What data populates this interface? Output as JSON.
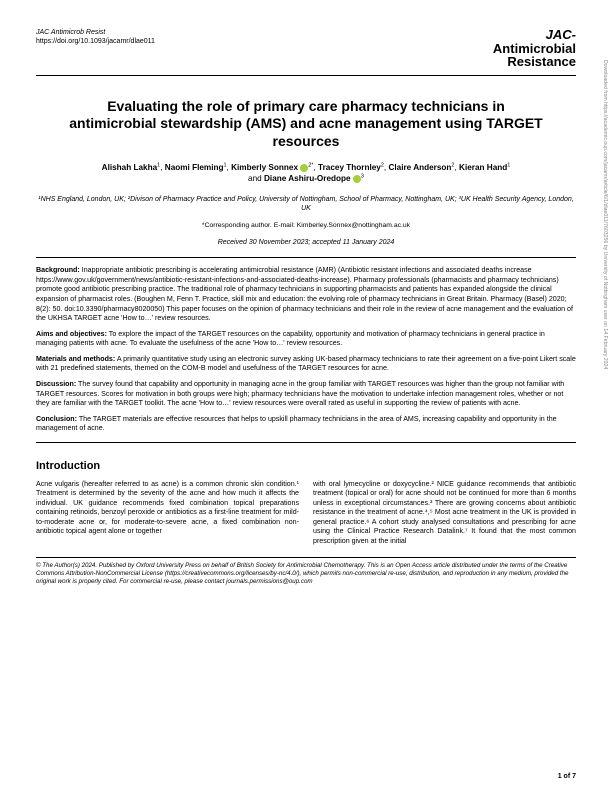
{
  "header": {
    "journal_name": "JAC Antimicrob Resist",
    "doi": "https://doi.org/10.1093/jacamr/dlae011",
    "logo_line1": "JAC-",
    "logo_line2": "Antimicrobial",
    "logo_line3": "Resistance"
  },
  "title": "Evaluating the role of primary care pharmacy technicians in antimicrobial stewardship (AMS) and acne management using TARGET resources",
  "authors": {
    "a1": "Alishah Lakha",
    "a1_sup": "1",
    "a2": "Naomi Fleming",
    "a2_sup": "1",
    "a3": "Kimberly Sonnex",
    "a3_sup": "2",
    "a3_mark": "*",
    "a4": "Tracey Thornley",
    "a4_sup": "2",
    "a5": "Claire Anderson",
    "a5_sup": "2",
    "a6": "Kieran Hand",
    "a6_sup": "1",
    "and": "and",
    "a7": "Diane Ashiru-Oredope",
    "a7_sup": "3"
  },
  "affiliations": "¹NHS England, London, UK; ²Divison of Pharmacy Practice and Policy, University of Nottingham, School of Pharmacy, Nottingham, UK; ³UK Health Security Agency, London, UK",
  "corresponding": "*Corresponding author. E-mail: Kimberley.Sonnex@nottingham.ac.uk",
  "dates": "Received 30 November 2023; accepted 11 January 2024",
  "abstract": {
    "background_label": "Background:",
    "background": " Inappropriate antibiotic prescribing is accelerating antimicrobial resistance (AMR) (Antibiotic resistant infections and associated deaths increase https://www.gov.uk/government/news/antibiotic-resistant-infections-and-associated-deaths-increase). Pharmacy professionals (pharmacists and pharmacy technicians) promote good antibiotic prescribing practice. The traditional role of pharmacy technicians in supporting pharmacists and patients has expanded alongside the clinical expansion of pharmacist roles. (Boughen M, Fenn T. Practice, skill mix and education: the evolving role of pharmacy technicians in Great Britain. Pharmacy (Basel) 2020; 8(2): 50. doi:10.3390/pharmacy8020050) This paper focuses on the opinion of pharmacy technicians and their role in the review of acne management and the evaluation of the UKHSA TARGET acne 'How to…' review resources.",
    "aims_label": "Aims and objectives:",
    "aims": " To explore the impact of the TARGET resources on the capability, opportunity and motivation of pharmacy technicians in general practice in managing patients with acne.\nTo evaluate the usefulness of the acne 'How to…' review resources.",
    "methods_label": "Materials and methods:",
    "methods": " A primarily quantitative study using an electronic survey asking UK-based pharmacy technicians to rate their agreement on a five-point Likert scale with 21 predefined statements, themed on the COM-B model and usefulness of the TARGET resources for acne.",
    "discussion_label": "Discussion:",
    "discussion": " The survey found that capability and opportunity in managing acne in the group familiar with TARGET resources was higher than the group not familiar with TARGET resources. Scores for motivation in both groups were high; pharmacy technicians have the motivation to undertake infection management roles, whether or not they are familiar with the TARGET toolkit.\nThe acne 'How to…' review resources were overall rated as useful in supporting the review of patients with acne.",
    "conclusion_label": "Conclusion:",
    "conclusion": " The TARGET materials are effective resources that helps to upskill pharmacy technicians in the area of AMS, increasing capability and opportunity in the management of acne."
  },
  "body": {
    "intro_heading": "Introduction",
    "col1": "Acne vulgaris (hereafter referred to as acne) is a common chronic skin condition.¹ Treatment is determined by the severity of the acne and how much it affects the individual. UK guidance recommends fixed combination topical preparations containing retinoids, benzoyl peroxide or antibiotics as a first-line treatment for mild-to-moderate acne or, for moderate-to-severe acne, a fixed combination non-antibiotic topical agent alone or together",
    "col2": "with oral lymecycline or doxycycline.² NICE guidance recommends that antibiotic treatment (topical or oral) for acne should not be continued for more than 6 months unless in exceptional circumstances.³\n    There are growing concerns about antibiotic resistance in the treatment of acne.⁴,⁵ Most acne treatment in the UK is provided in general practice.⁶ A cohort study analysed consultations and prescribing for acne using the Clinical Practice Research Datalink.⁷ It found that the most common prescription given at the initial"
  },
  "footer": "© The Author(s) 2024. Published by Oxford University Press on behalf of British Society for Antimicrobial Chemotherapy.\nThis is an Open Access article distributed under the terms of the Creative Commons Attribution-NonCommercial License (https://creativecommons.org/licenses/by-nc/4.0/), which permits non-commercial re-use, distribution, and reproduction in any medium, provided the original work is properly cited. For commercial re-use, please contact journals.permissions@oup.com",
  "page_num": "1 of 7",
  "side_text": "Downloaded from https://academic.oup.com/jacamr/article/6/1/dlae011/7603256 by University of Nottingham user on 14 February 2024"
}
